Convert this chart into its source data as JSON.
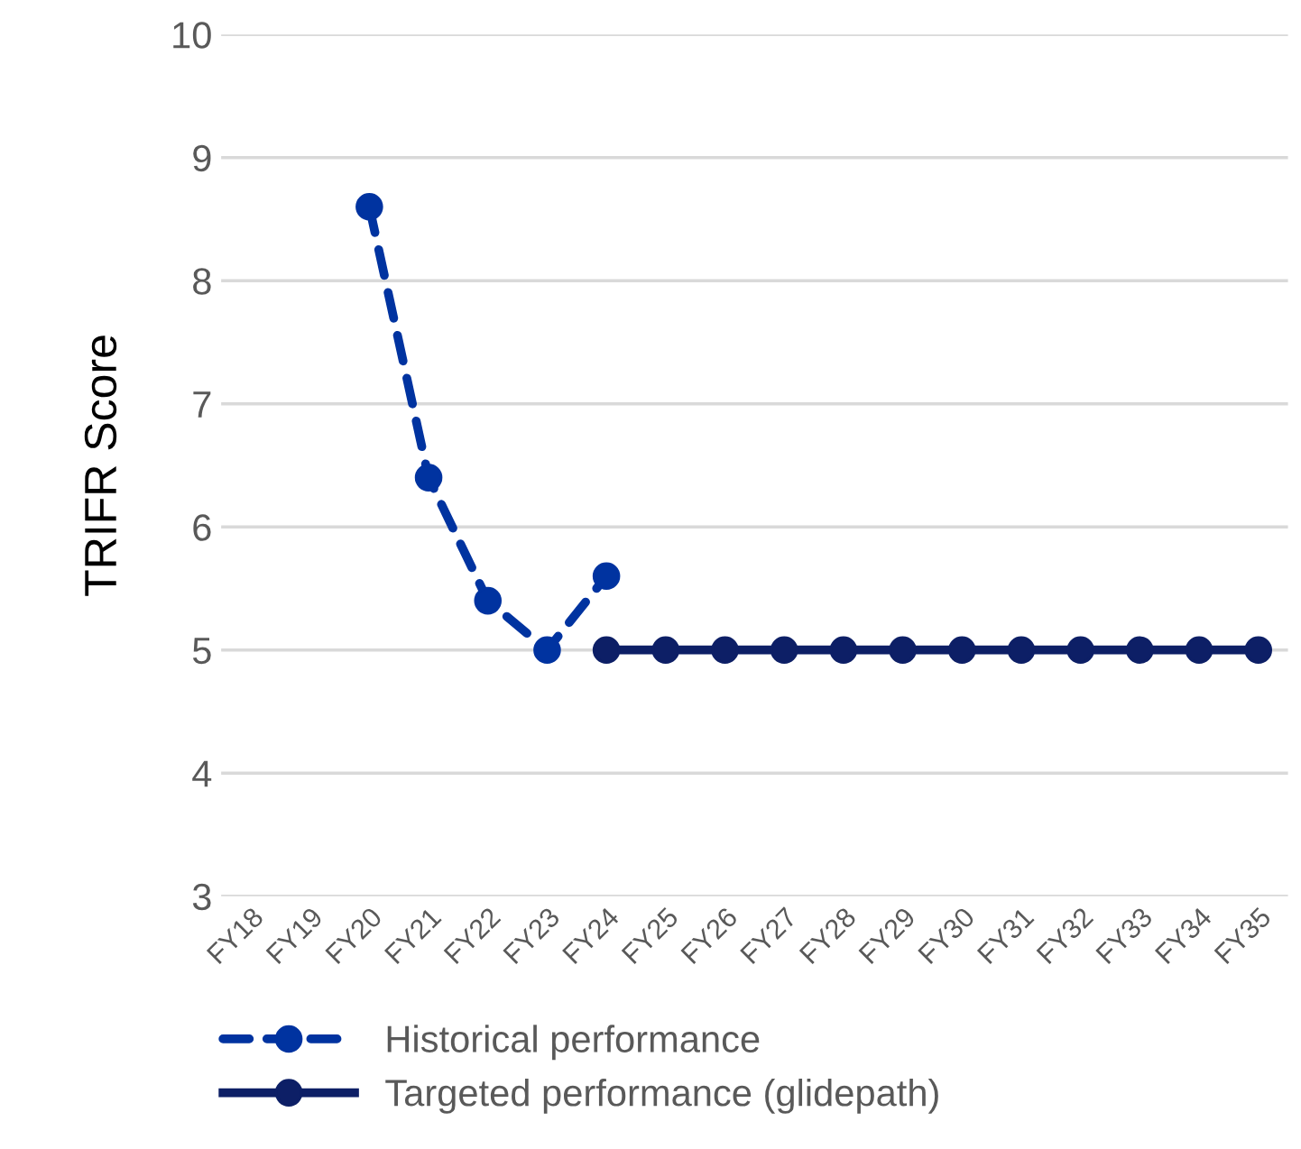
{
  "chart_data": {
    "type": "line",
    "ylabel": "TRIFR Score",
    "categories": [
      "FY18",
      "FY19",
      "FY20",
      "FY21",
      "FY22",
      "FY23",
      "FY24",
      "FY25",
      "FY26",
      "FY27",
      "FY28",
      "FY29",
      "FY30",
      "FY31",
      "FY32",
      "FY33",
      "FY34",
      "FY35"
    ],
    "series": [
      {
        "name": "Historical performance",
        "color": "#0033a0",
        "line_style": "dashed",
        "values": [
          null,
          null,
          8.6,
          6.4,
          5.4,
          5.0,
          5.6,
          null,
          null,
          null,
          null,
          null,
          null,
          null,
          null,
          null,
          null,
          null
        ]
      },
      {
        "name": "Targeted performance (glidepath)",
        "color": "#0d1f66",
        "line_style": "solid",
        "values": [
          null,
          null,
          null,
          null,
          null,
          null,
          5,
          5,
          5,
          5,
          5,
          5,
          5,
          5,
          5,
          5,
          5,
          5
        ]
      }
    ],
    "marker": "circle",
    "ylim": [
      3,
      10
    ],
    "yticks": [
      3,
      4,
      5,
      6,
      7,
      8,
      9,
      10
    ],
    "grid": "y",
    "legend": "bottom"
  }
}
